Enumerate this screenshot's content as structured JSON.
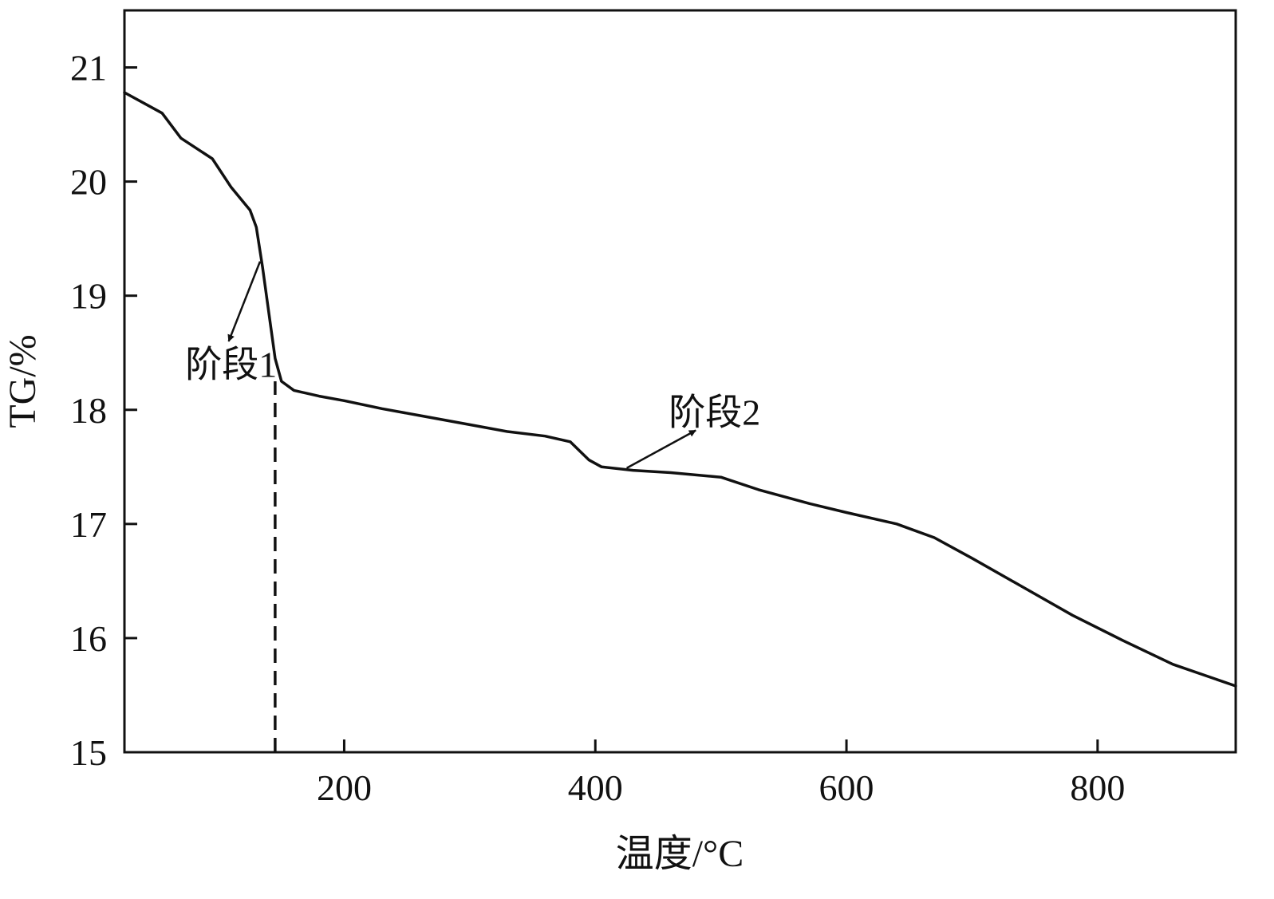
{
  "chart_data": {
    "type": "line",
    "title": "",
    "xlabel": "温度/°C",
    "ylabel": "TG/%",
    "xlim": [
      25,
      910
    ],
    "ylim": [
      15,
      21.5
    ],
    "x_ticks": [
      {
        "value": 200,
        "label": "200"
      },
      {
        "value": 400,
        "label": "400"
      },
      {
        "value": 600,
        "label": "600"
      },
      {
        "value": 800,
        "label": "800"
      }
    ],
    "y_ticks": [
      {
        "value": 15,
        "label": "15"
      },
      {
        "value": 16,
        "label": "16"
      },
      {
        "value": 17,
        "label": "17"
      },
      {
        "value": 18,
        "label": "18"
      },
      {
        "value": 19,
        "label": "19"
      },
      {
        "value": 20,
        "label": "20"
      },
      {
        "value": 21,
        "label": "21"
      }
    ],
    "grid": false,
    "legend": "none",
    "series": [
      {
        "color": "#111111",
        "x": [
          25,
          55,
          70,
          95,
          110,
          125,
          130,
          135,
          140,
          145,
          150,
          160,
          180,
          200,
          230,
          260,
          300,
          330,
          360,
          380,
          395,
          405,
          430,
          460,
          500,
          530,
          570,
          600,
          640,
          670,
          700,
          740,
          780,
          820,
          860,
          910
        ],
        "y": [
          20.78,
          20.6,
          20.38,
          20.2,
          19.95,
          19.75,
          19.6,
          19.25,
          18.85,
          18.45,
          18.25,
          18.17,
          18.12,
          18.08,
          18.01,
          17.95,
          17.87,
          17.81,
          17.77,
          17.72,
          17.56,
          17.5,
          17.47,
          17.45,
          17.41,
          17.3,
          17.18,
          17.1,
          17.0,
          16.88,
          16.7,
          16.45,
          16.2,
          15.98,
          15.77,
          15.58
        ]
      }
    ],
    "reference_lines": [
      {
        "axis": "x",
        "value": 145,
        "style": "dashed",
        "from_y": 15,
        "to_y": 18.25
      }
    ],
    "annotations": [
      {
        "text": "阶段1",
        "point_x": 133,
        "point_y": 19.3,
        "label_x": 110,
        "label_y": 18.4,
        "arrow_to_x": 108,
        "arrow_to_y": 18.6
      },
      {
        "text": "阶段2",
        "point_x": 425,
        "point_y": 17.49,
        "label_x": 495,
        "label_y": 17.98,
        "arrow_to_x": 480,
        "arrow_to_y": 17.82
      }
    ]
  }
}
